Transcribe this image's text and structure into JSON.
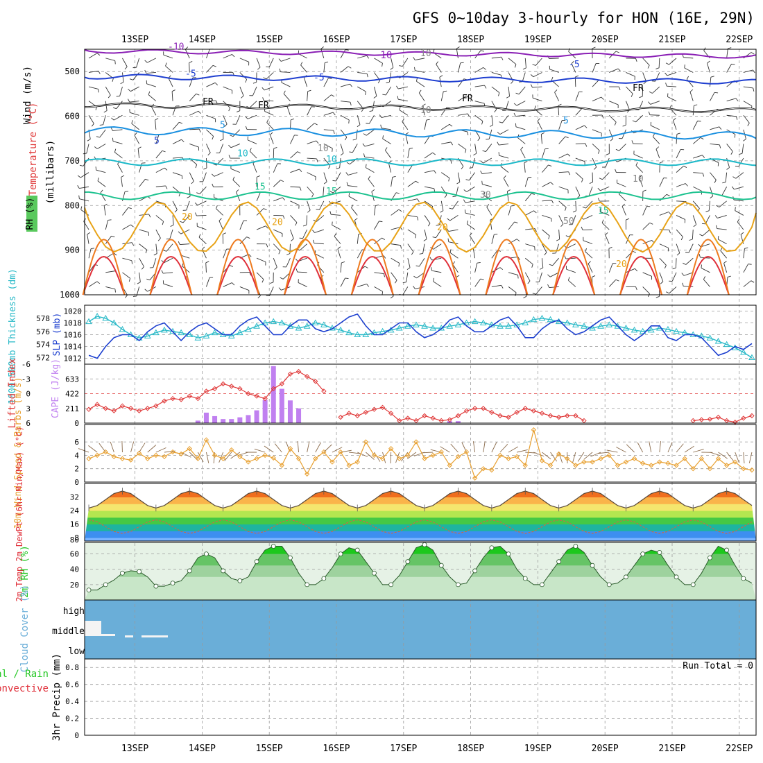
{
  "title": "GFS 0~10day 3-hourly for HON (16E, 29N)",
  "colors": {
    "rh_light": "#e4f2e4",
    "rh_mid": "#c8dcc8",
    "rh_dark": "#a9bea9",
    "rh_green": "#59c95d",
    "purple": "#8a1fb5",
    "blue": "#1f3fd0",
    "skyblue": "#1a90e0",
    "cyan": "#1ab8c8",
    "teal": "#1cc28f",
    "orange": "#e8a317",
    "deep_orange": "#ee7a1e",
    "red": "#e0303a",
    "slp": "#1c3fcf",
    "thickness": "#2abac8",
    "lifted": "#e03a3a",
    "cape": "#c080f0",
    "wind_speed": "#e8a030",
    "cloud": "#6aaed8",
    "rh2m": "#26c826"
  },
  "chart_data": {
    "type": "meteogram",
    "days": [
      "13SEP",
      "14SEP",
      "15SEP",
      "16SEP",
      "17SEP",
      "18SEP",
      "19SEP",
      "20SEP",
      "21SEP",
      "22SEP"
    ],
    "n_steps": 80,
    "panels": [
      {
        "id": "upper_air",
        "type": "contour",
        "ylabel_wind": "Wind (m/s)",
        "ylabel_temp": "Temperature (°C)",
        "ylabel_rh": "RH (%)",
        "ylabel_unit": "(millibars)",
        "pressure_ticks": [
          "500",
          "600",
          "700",
          "800",
          "900",
          "1000"
        ],
        "ylim": [
          450,
          1000
        ],
        "isotherms": [
          {
            "label": "-10",
            "color": "purple",
            "mean": 462,
            "amp": 7
          },
          {
            "label": "-5",
            "color": "blue",
            "mean": 519,
            "amp": 9
          },
          {
            "label": "FR",
            "color": "black",
            "mean": 583,
            "amp": 8
          },
          {
            "label": "5",
            "color": "skyblue",
            "mean": 640,
            "amp": 14
          },
          {
            "label": "10",
            "color": "cyan",
            "mean": 703,
            "amp": 12
          },
          {
            "label": "15",
            "color": "teal",
            "mean": 778,
            "amp": 14
          },
          {
            "label": "20",
            "color": "orange",
            "mean": 848,
            "amp": 35
          }
        ],
        "rh_contour_labels": [
          "10",
          "30",
          "50"
        ],
        "inline_labels": [
          "-10",
          "-5",
          "-5",
          "FR",
          "FR",
          "FR",
          "5",
          "5",
          "10",
          "10",
          "15",
          "15",
          "20",
          "20",
          "20",
          "10",
          "10",
          "10",
          "10",
          "30",
          "50"
        ]
      },
      {
        "id": "slp_thickness",
        "type": "line",
        "ylabel_left": "1000-500mb Thickness (dm)",
        "ylabel_right": "SLP (mb)",
        "ticks_thickness": [
          "578",
          "576",
          "574",
          "572"
        ],
        "ticks_slp": [
          "1020",
          "1018",
          "1016",
          "1014",
          "1012"
        ],
        "ylim_slp": [
          1011,
          1021
        ],
        "ylim_thickness": [
          571,
          580
        ],
        "slp": [
          1012.5,
          1012.0,
          1014.0,
          1015.5,
          1016.0,
          1016.0,
          1015.0,
          1016.5,
          1017.5,
          1018.0,
          1016.5,
          1015.0,
          1016.5,
          1017.5,
          1018.0,
          1017.0,
          1016.0,
          1016.0,
          1017.5,
          1018.5,
          1019.0,
          1017.5,
          1016.0,
          1016.0,
          1017.5,
          1018.5,
          1018.5,
          1017.0,
          1016.5,
          1017.0,
          1018.0,
          1019.0,
          1019.5,
          1017.5,
          1016.0,
          1016.0,
          1017.0,
          1018.0,
          1018.0,
          1016.5,
          1015.5,
          1016.0,
          1017.0,
          1018.5,
          1019.0,
          1017.5,
          1016.5,
          1016.5,
          1017.5,
          1018.5,
          1019.0,
          1017.5,
          1015.5,
          1015.5,
          1017.0,
          1018.0,
          1018.5,
          1017.0,
          1016.0,
          1016.5,
          1017.5,
          1018.5,
          1019.0,
          1017.5,
          1016.0,
          1015.0,
          1016.0,
          1017.5,
          1017.5,
          1015.5,
          1015.0,
          1016.0,
          1016.0,
          1015.5,
          1014.0,
          1012.5,
          1013.0,
          1014.0,
          1013.5,
          1014.5
        ],
        "thickness": [
          577.5,
          578.3,
          578.0,
          577.3,
          576.3,
          575.5,
          575.0,
          575.3,
          575.8,
          576.2,
          576.0,
          575.8,
          575.5,
          575.0,
          575.3,
          575.8,
          575.5,
          575.3,
          575.8,
          576.3,
          576.8,
          577.3,
          577.5,
          577.3,
          576.8,
          576.5,
          576.8,
          577.3,
          577.0,
          576.5,
          576.2,
          575.8,
          575.5,
          575.5,
          575.8,
          576.0,
          576.2,
          576.5,
          576.8,
          577.0,
          576.8,
          576.5,
          576.5,
          576.8,
          577.0,
          577.3,
          577.5,
          577.3,
          577.0,
          576.8,
          576.8,
          577.0,
          577.3,
          577.8,
          578.0,
          577.8,
          577.5,
          577.3,
          577.0,
          576.8,
          576.5,
          576.8,
          577.0,
          576.8,
          576.5,
          576.2,
          576.0,
          576.2,
          576.5,
          576.3,
          576.0,
          575.8,
          575.5,
          575.3,
          575.0,
          574.5,
          574.0,
          573.5,
          572.8,
          572.0
        ]
      },
      {
        "id": "stability",
        "type": "line+bar",
        "ylabel_left": "Lifted Index",
        "ylabel_right": "CAPE (J/kg)",
        "ticks_li": [
          "-6",
          "-3",
          "0",
          "3",
          "6"
        ],
        "ticks_cape": [
          "633",
          "422",
          "211",
          "0"
        ],
        "ylim_li": [
          6,
          -6
        ],
        "ylim_cape": [
          0,
          844
        ],
        "lifted_index": [
          3.2,
          2.2,
          3.0,
          3.5,
          2.5,
          3.0,
          3.5,
          3.0,
          2.5,
          1.5,
          1.0,
          1.2,
          0.5,
          1.0,
          -0.5,
          -1.0,
          -2.0,
          -1.5,
          -1.0,
          0.0,
          0.5,
          1.0,
          -1.0,
          -2.0,
          -4.0,
          -4.5,
          -3.5,
          -2.5,
          -0.5,
          null,
          4.8,
          4.0,
          4.5,
          3.8,
          3.2,
          2.8,
          4.0,
          5.5,
          5.0,
          5.5,
          4.5,
          5.0,
          5.5,
          5.3,
          4.5,
          3.5,
          3.0,
          3.0,
          3.8,
          4.5,
          4.8,
          3.8,
          3.0,
          3.5,
          4.0,
          4.5,
          4.8,
          4.5,
          4.5,
          5.5,
          null,
          null,
          null,
          null,
          null,
          null,
          null,
          null,
          null,
          null,
          null,
          null,
          null,
          null,
          null,
          null,
          null,
          null,
          null,
          null
        ],
        "li_tail": [
          5.5,
          5.3,
          5.2,
          4.8,
          5.5,
          5.8,
          5.0,
          4.5
        ],
        "cape": [
          0,
          0,
          0,
          0,
          0,
          0,
          0,
          0,
          0,
          0,
          0,
          0,
          0,
          36,
          150,
          100,
          58,
          58,
          83,
          115,
          183,
          331,
          816,
          491,
          325,
          211,
          0,
          0,
          0,
          0,
          0,
          0,
          0,
          0,
          0,
          0,
          0,
          0,
          0,
          0,
          0,
          0,
          0,
          28,
          28,
          0,
          0,
          0,
          0,
          0,
          0,
          0,
          0,
          0,
          0,
          0,
          0,
          0,
          0,
          0,
          0,
          0,
          0,
          0,
          0,
          0,
          0,
          0,
          0,
          0,
          0,
          0,
          0,
          0,
          0,
          0,
          0,
          0,
          0,
          0
        ]
      },
      {
        "id": "wind10m",
        "type": "line",
        "ylabel": "10m Wind Speed & Barbs (m/s)",
        "ticks": [
          "6",
          "4",
          "2",
          "0"
        ],
        "ylim": [
          0,
          8.6
        ],
        "speed": [
          3.5,
          4.0,
          4.5,
          3.8,
          3.5,
          3.3,
          4.3,
          3.5,
          4.0,
          3.8,
          4.5,
          4.2,
          5.0,
          3.5,
          6.3,
          4.0,
          3.5,
          4.8,
          3.8,
          3.0,
          3.5,
          4.0,
          3.6,
          2.5,
          5.0,
          3.5,
          1.2,
          3.5,
          4.5,
          3.0,
          4.5,
          2.5,
          3.0,
          6.0,
          4.0,
          3.5,
          5.0,
          3.5,
          4.0,
          6.0,
          3.5,
          4.0,
          4.5,
          2.5,
          3.8,
          4.5,
          0.6,
          2.0,
          1.8,
          4.0,
          3.5,
          3.8,
          2.5,
          7.8,
          3.2,
          2.5,
          4.2,
          3.5,
          2.5,
          3.0,
          3.0,
          3.5,
          4.0,
          2.5,
          3.0,
          3.5,
          2.8,
          2.5,
          3.0,
          2.8,
          2.5,
          3.5,
          2.0,
          3.5,
          2.0,
          3.5,
          2.5,
          3.0,
          2.0,
          1.8
        ]
      },
      {
        "id": "temp2m",
        "type": "area",
        "ylabel": "2m Temp 2m DewPt (6hr Min/Max) (°C)",
        "ticks": [
          "32",
          "24",
          "16",
          "8",
          "80"
        ],
        "ylim": [
          6,
          40
        ],
        "temp_min": 25.5,
        "temp_max": 35.5,
        "dewpoint_min": 10.5,
        "dewpoint_max": 18.5,
        "bands": [
          {
            "from": 6,
            "to": 8,
            "color": "#7ab4ff"
          },
          {
            "from": 8,
            "to": 12,
            "color": "#3d8ff0"
          },
          {
            "from": 12,
            "to": 16,
            "color": "#1eb4a0"
          },
          {
            "from": 16,
            "to": 20,
            "color": "#45c845"
          },
          {
            "from": 20,
            "to": 24,
            "color": "#b4e650"
          },
          {
            "from": 24,
            "to": 28,
            "color": "#f4e66e"
          },
          {
            "from": 28,
            "to": 32,
            "color": "#fab44a"
          },
          {
            "from": 32,
            "to": 36,
            "color": "#f06e1e"
          },
          {
            "from": 36,
            "to": 40,
            "color": "#c81e1e"
          }
        ]
      },
      {
        "id": "rh2m",
        "type": "area",
        "ylabel": "2m RH (%)",
        "ticks": [
          "60",
          "40",
          "20"
        ],
        "ylim": [
          0,
          75
        ],
        "rh": [
          13,
          13,
          20,
          26,
          35,
          38,
          37,
          30,
          18,
          18,
          22,
          25,
          38,
          55,
          60,
          55,
          38,
          28,
          25,
          30,
          50,
          65,
          70,
          70,
          55,
          35,
          20,
          20,
          28,
          42,
          60,
          68,
          65,
          50,
          35,
          20,
          20,
          32,
          50,
          68,
          72,
          65,
          45,
          30,
          20,
          22,
          38,
          55,
          68,
          70,
          60,
          40,
          28,
          20,
          20,
          35,
          50,
          65,
          70,
          62,
          45,
          30,
          20,
          22,
          30,
          45,
          60,
          65,
          62,
          45,
          30,
          20,
          20,
          35,
          55,
          70,
          65,
          45,
          28,
          22
        ]
      },
      {
        "id": "cloud",
        "type": "area",
        "ylabel": "Cloud Cover (%)",
        "ticks": [
          "high",
          "middle",
          "low"
        ]
      },
      {
        "id": "precip",
        "type": "bar",
        "ylabel_total": "Total / Rain",
        "ylabel_convective": "Convective",
        "ylabel_unit": "3hr Precip (mm)",
        "ticks": [
          "0.8",
          "0.6",
          "0.4",
          "0.2",
          "0"
        ],
        "ylim": [
          0,
          0.9
        ],
        "run_total": "Run Total = 0",
        "values": []
      }
    ]
  }
}
